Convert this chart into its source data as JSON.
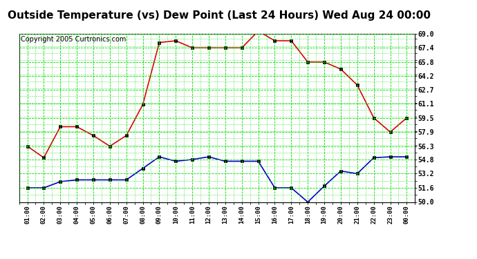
{
  "title": "Outside Temperature (vs) Dew Point (Last 24 Hours) Wed Aug 24 00:00",
  "copyright": "Copyright 2005 Curtronics.com",
  "x_labels": [
    "01:00",
    "02:00",
    "03:00",
    "04:00",
    "05:00",
    "06:00",
    "07:00",
    "08:00",
    "09:00",
    "10:00",
    "11:00",
    "12:00",
    "13:00",
    "14:00",
    "15:00",
    "16:00",
    "17:00",
    "18:00",
    "19:00",
    "20:00",
    "21:00",
    "22:00",
    "23:00",
    "00:00"
  ],
  "temp_data": [
    56.3,
    55.0,
    58.5,
    58.5,
    57.5,
    56.3,
    57.5,
    61.0,
    68.0,
    68.2,
    67.4,
    67.4,
    67.4,
    67.4,
    69.3,
    68.2,
    68.2,
    65.8,
    65.8,
    65.0,
    63.2,
    59.5,
    57.9,
    59.5
  ],
  "dew_data": [
    51.6,
    51.6,
    52.3,
    52.5,
    52.5,
    52.5,
    52.5,
    53.8,
    55.1,
    54.6,
    54.8,
    55.1,
    54.6,
    54.6,
    54.6,
    51.6,
    51.6,
    50.0,
    51.8,
    53.5,
    53.2,
    55.0,
    55.1,
    55.1
  ],
  "y_ticks": [
    50.0,
    51.6,
    53.2,
    54.8,
    56.3,
    57.9,
    59.5,
    61.1,
    62.7,
    64.2,
    65.8,
    67.4,
    69.0
  ],
  "y_min": 50.0,
  "y_max": 69.0,
  "temp_color": "#dd0000",
  "dew_color": "#0000cc",
  "grid_color": "#00dd00",
  "bg_color": "#ffffff",
  "title_fontsize": 11,
  "copyright_fontsize": 7
}
